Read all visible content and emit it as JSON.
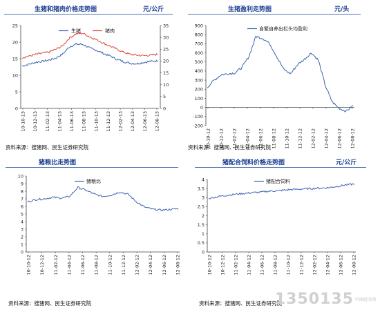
{
  "panels": [
    {
      "title": "生猪和猪肉价格走势图",
      "unit": "元/公斤",
      "source": "资料来源：搜猪网、民生证券研究院"
    },
    {
      "title": "生猪盈利走势图",
      "unit": "元/头",
      "source": "资料来源：搜猪网、民生证券研究院"
    },
    {
      "title": "猪粮比走势图",
      "unit": "",
      "source": "资料来源：搜猪网、民生证券研究院"
    },
    {
      "title": "猪配合饲料价格走势图",
      "unit": "元/公斤",
      "source": "资料来源：搜猪网、民生证券研究院"
    }
  ],
  "watermark": {
    "number": "1350135",
    "site": "中国经济网"
  },
  "colors": {
    "title_blue": "#1a3d8f",
    "rule_blue": "#4a6fb5",
    "series_blue": "#3a62b0",
    "series_red": "#d9453e"
  },
  "chart_data": [
    {
      "type": "line",
      "xticks": [
        "10-10-13",
        "10-12-13",
        "11-02-13",
        "11-04-13",
        "11-06-13",
        "11-08-13",
        "11-10-13",
        "11-12-13",
        "12-02-13",
        "12-04-13",
        "12-06-13",
        "12-08-13"
      ],
      "yleft": {
        "ticks": [
          "0",
          "5",
          "10",
          "15",
          "20",
          "25"
        ],
        "lim": [
          0,
          25
        ]
      },
      "yright": {
        "ticks": [
          "0",
          "5",
          "10",
          "15",
          "20",
          "25",
          "30",
          "35"
        ],
        "lim": [
          0,
          35
        ]
      },
      "series": [
        {
          "name": "生猪",
          "axis": "left",
          "color": "#3a62b0",
          "values": [
            12.8,
            13.3,
            13.9,
            14.2,
            14.6,
            15.2,
            16.4,
            18.6,
            19.4,
            19.3,
            18.2,
            17.5,
            16.6,
            15.8,
            14.8,
            14.1,
            13.6,
            13.5,
            13.9,
            14.2,
            14.3
          ]
        },
        {
          "name": "猪肉",
          "axis": "right",
          "color": "#d9453e",
          "values": [
            21.5,
            22.0,
            22.8,
            23.3,
            23.8,
            25.0,
            26.5,
            29.8,
            31.5,
            31.7,
            30.2,
            29.0,
            27.6,
            26.3,
            25.0,
            23.7,
            22.8,
            22.5,
            22.3,
            22.5,
            22.8
          ]
        }
      ],
      "legend": "top-center"
    },
    {
      "type": "line",
      "xticks": [
        "10-10-12",
        "10-12-12",
        "11-02-12",
        "11-04-12",
        "11-06-12",
        "11-08-12",
        "11-10-12",
        "11-12-12",
        "12-02-12",
        "12-04-12",
        "12-06-12",
        "12-08-12"
      ],
      "yleft": {
        "ticks": [
          "-200",
          "-100",
          "0",
          "100",
          "200",
          "300",
          "400",
          "500",
          "600",
          "700",
          "800",
          "900"
        ],
        "lim": [
          -200,
          900
        ]
      },
      "series": [
        {
          "name": "自繁自养出栏头均盈利",
          "axis": "left",
          "color": "#3a62b0",
          "values": [
            220,
            300,
            360,
            370,
            380,
            440,
            560,
            780,
            760,
            700,
            560,
            420,
            370,
            470,
            530,
            600,
            520,
            240,
            60,
            -10,
            -40,
            20
          ]
        }
      ],
      "legend": "top-right"
    },
    {
      "type": "line",
      "xticks": [
        "10-10-12",
        "10-12-12",
        "11-02-12",
        "11-04-12",
        "11-06-12",
        "11-08-12",
        "11-10-12",
        "11-12-12",
        "12-02-12",
        "12-04-12",
        "12-06-12",
        "12-08-12"
      ],
      "yleft": {
        "ticks": [
          "0",
          "1",
          "2",
          "3",
          "4",
          "5",
          "6",
          "7",
          "8",
          "9",
          "10"
        ],
        "lim": [
          0,
          10
        ]
      },
      "series": [
        {
          "name": "猪粮比",
          "axis": "left",
          "color": "#3a62b0",
          "values": [
            6.6,
            6.9,
            7.0,
            7.2,
            7.1,
            7.3,
            8.5,
            8.1,
            7.6,
            7.3,
            7.5,
            7.9,
            7.6,
            6.6,
            5.9,
            5.6,
            5.5,
            5.6,
            5.7
          ]
        }
      ],
      "legend": "top-center"
    },
    {
      "type": "line",
      "xticks": [
        "10-10-12",
        "10-12-12",
        "11-02-12",
        "11-04-12",
        "11-06-12",
        "11-08-12",
        "11-10-12",
        "11-12-12",
        "12-02-12",
        "12-04-12",
        "12-06-12",
        "12-08-12"
      ],
      "yleft": {
        "ticks": [
          "0",
          "0.5",
          "1",
          "1.5",
          "2",
          "2.5",
          "3",
          "3.5",
          "4"
        ],
        "lim": [
          0,
          4
        ]
      },
      "series": [
        {
          "name": "猪配合饲料",
          "axis": "left",
          "color": "#3a62b0",
          "values": [
            2.95,
            3.05,
            3.12,
            3.18,
            3.22,
            3.27,
            3.3,
            3.35,
            3.38,
            3.42,
            3.45,
            3.48,
            3.5,
            3.52,
            3.55,
            3.62,
            3.7,
            3.75
          ]
        }
      ],
      "legend": "top-center"
    }
  ]
}
